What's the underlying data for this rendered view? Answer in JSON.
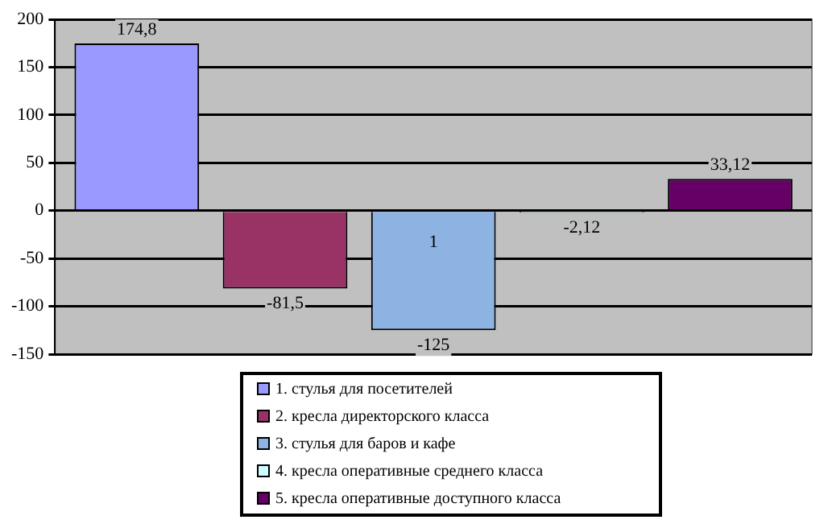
{
  "chart_data": {
    "type": "bar",
    "categories": [
      null
    ],
    "series": [
      {
        "name": "1. стулья для посетителей",
        "color": "#9999ff",
        "values": [
          174.8
        ],
        "value_labels": [
          "174,8"
        ]
      },
      {
        "name": "2. кресла директорского класса",
        "color": "#993366",
        "values": [
          -81.5
        ],
        "value_labels": [
          "-81,5"
        ]
      },
      {
        "name": "3. стулья для баров и кафе",
        "color": "#8db3e2",
        "values": [
          -125
        ],
        "value_labels": [
          "-125"
        ]
      },
      {
        "name": "4. кресла оперативные среднего класса",
        "color": "#ccffff",
        "values": [
          -2.12
        ],
        "value_labels": [
          "-2,12"
        ]
      },
      {
        "name": "5. кресла оперативные доступного класса",
        "color": "#660066",
        "values": [
          33.12
        ],
        "value_labels": [
          "33,12"
        ]
      }
    ],
    "annotations": [
      "1"
    ],
    "ylim": [
      -150,
      200
    ],
    "yticks": [
      -150,
      -100,
      -50,
      0,
      50,
      100,
      150,
      200
    ],
    "grid": "y",
    "legend": "bottom"
  }
}
